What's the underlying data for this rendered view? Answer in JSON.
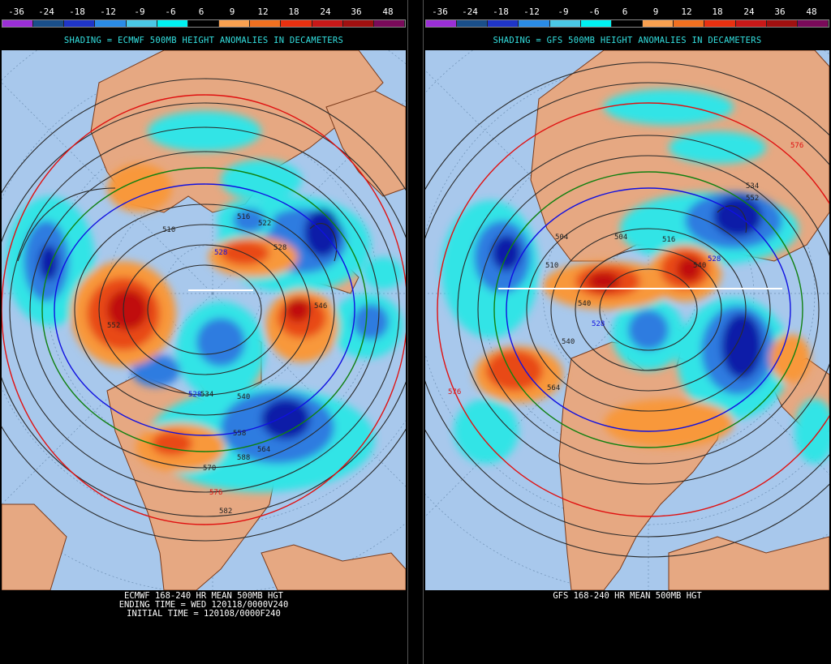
{
  "scale": {
    "labels": [
      "-36",
      "-24",
      "-18",
      "-12",
      "-9",
      "-6",
      "6",
      "9",
      "12",
      "18",
      "24",
      "36",
      "48"
    ],
    "colors": [
      "#9b2fd6",
      "#1a4f8a",
      "#1f35c8",
      "#2a8be6",
      "#4ac8e6",
      "#00f0f0",
      "#000000",
      "#f8a050",
      "#f07020",
      "#e83010",
      "#c81818",
      "#a01010",
      "#7a0a5a"
    ]
  },
  "colors": {
    "ocean": "#a8c8ec",
    "land": "#e6a882",
    "coast": "#7a3a1a",
    "grid": "#6d8fb3",
    "contour": "#2a2a2a",
    "contour_blue": "#1010e0",
    "contour_green": "#108010",
    "contour_red": "#e01010",
    "neg_strong": "#0a1aa8",
    "neg_mid": "#2f7ce0",
    "neg_light": "#30e4e6",
    "pos_light": "#f8983a",
    "pos_mid": "#e84818",
    "pos_strong": "#c01010"
  },
  "left": {
    "subtitle": "SHADING = ECMWF 500MB HEIGHT ANOMALIES IN DECAMETERS",
    "footer_line1": "ECMWF 168-240 HR MEAN 500MB HGT",
    "footer_line2": "ENDING TIME = WED 120118/0000V240",
    "footer_line3": "INITIAL TIME = 120108/0000F240",
    "contour_labels": {
      "c510": "510",
      "c516": "516",
      "c522": "522",
      "c528a": "528",
      "c528b": "528",
      "c528c": "528",
      "c534": "534",
      "c540": "540",
      "c546": "546",
      "c552": "552",
      "c558": "558",
      "c564": "564",
      "c570": "570",
      "c576": "576",
      "c582": "582",
      "c588": "588"
    }
  },
  "right": {
    "subtitle": "SHADING = GFS 500MB HEIGHT ANOMALIES IN DECAMETERS",
    "footer_line1": "GFS 168-240 HR MEAN 500MB HGT",
    "contour_labels": {
      "c504a": "504",
      "c504b": "504",
      "c510": "510",
      "c516": "516",
      "c528a": "528",
      "c528b": "528",
      "c534": "534",
      "c540a": "540",
      "c540b": "540",
      "c540c": "540",
      "c552": "552",
      "c576a": "576",
      "c576b": "576",
      "c564": "564"
    }
  }
}
